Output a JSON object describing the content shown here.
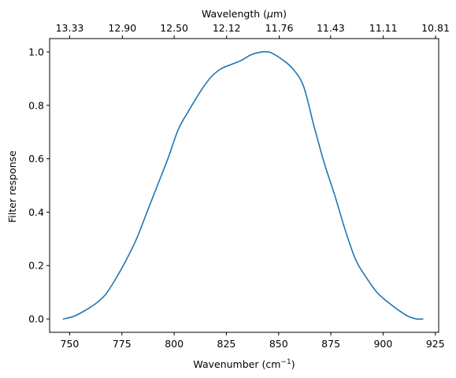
{
  "chart_data": {
    "type": "line",
    "title": "",
    "xlabel": "Wavenumber (cm",
    "xlabel_sup": "−1",
    "xlabel_close": ")",
    "ylabel": "Filter response",
    "top_xlabel_pre": "Wavelength (",
    "top_xlabel_mu": "μ",
    "top_xlabel_post": "m)",
    "xlim": [
      740.4,
      926.6
    ],
    "ylim": [
      -0.05,
      1.05
    ],
    "x_ticks": [
      750,
      775,
      800,
      825,
      850,
      875,
      900,
      925
    ],
    "x_tick_labels": [
      "750",
      "775",
      "800",
      "825",
      "850",
      "875",
      "900",
      "925"
    ],
    "y_ticks": [
      0.0,
      0.2,
      0.4,
      0.6,
      0.8,
      1.0
    ],
    "y_tick_labels": [
      "0.0",
      "0.2",
      "0.4",
      "0.6",
      "0.8",
      "1.0"
    ],
    "top_x_ticks": [
      750.0,
      775.2,
      800.0,
      825.1,
      850.3,
      874.9,
      900.1,
      925.1
    ],
    "top_x_tick_labels": [
      "13.33",
      "12.90",
      "12.50",
      "12.12",
      "11.76",
      "11.43",
      "11.11",
      "10.81"
    ],
    "grid": false,
    "line_color": "#1f77b4",
    "series": [
      {
        "x": [
          747,
          752,
          757,
          762,
          767,
          772,
          777,
          782,
          787,
          792,
          797,
          802,
          807,
          812,
          817,
          822,
          827,
          832,
          837,
          842,
          845,
          847,
          852,
          857,
          862,
          867,
          872,
          877,
          882,
          887,
          892,
          897,
          902,
          907,
          912,
          916,
          919
        ],
        "y": [
          0.0,
          0.01,
          0.03,
          0.055,
          0.09,
          0.15,
          0.22,
          0.3,
          0.4,
          0.5,
          0.6,
          0.71,
          0.78,
          0.845,
          0.9,
          0.935,
          0.952,
          0.968,
          0.99,
          1.0,
          1.0,
          0.995,
          0.97,
          0.935,
          0.87,
          0.72,
          0.58,
          0.46,
          0.33,
          0.22,
          0.155,
          0.1,
          0.065,
          0.035,
          0.01,
          0.0,
          0.0
        ]
      }
    ]
  }
}
